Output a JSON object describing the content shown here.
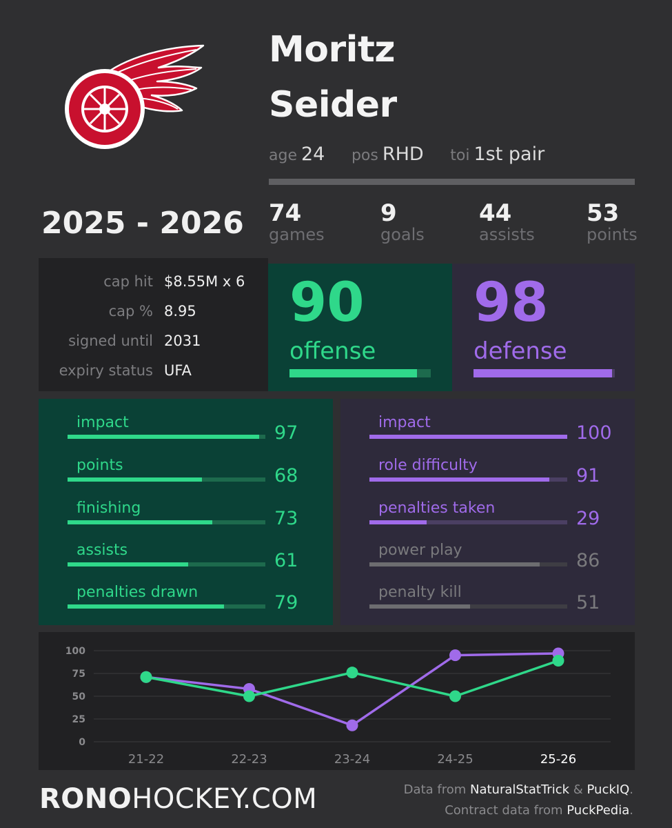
{
  "player": {
    "first_name": "Moritz",
    "last_name": "Seider",
    "age_label": "age",
    "age": "24",
    "pos_label": "pos",
    "pos": "RHD",
    "toi_label": "toi",
    "toi": "1st pair"
  },
  "season": "2025 - 2026",
  "stats": [
    {
      "value": "74",
      "label": "games"
    },
    {
      "value": "9",
      "label": "goals"
    },
    {
      "value": "44",
      "label": "assists"
    },
    {
      "value": "53",
      "label": "points"
    }
  ],
  "contract": [
    {
      "label": "cap hit",
      "value": "$8.55M x 6"
    },
    {
      "label": "cap %",
      "value": "8.95"
    },
    {
      "label": "signed until",
      "value": "2031"
    },
    {
      "label": "expiry status",
      "value": "UFA"
    }
  ],
  "offense": {
    "score": "90",
    "label": "offense",
    "level": 90,
    "metrics": [
      {
        "label": "impact",
        "value": "97",
        "level": 97
      },
      {
        "label": "points",
        "value": "68",
        "level": 68
      },
      {
        "label": "finishing",
        "value": "73",
        "level": 73
      },
      {
        "label": "assists",
        "value": "61",
        "level": 61
      },
      {
        "label": "penalties drawn",
        "value": "79",
        "level": 79
      }
    ]
  },
  "defense": {
    "score": "98",
    "label": "defense",
    "level": 98,
    "metrics": [
      {
        "label": "impact",
        "value": "100",
        "level": 100,
        "muted": false
      },
      {
        "label": "role difficulty",
        "value": "91",
        "level": 91,
        "muted": false
      },
      {
        "label": "penalties taken",
        "value": "29",
        "level": 29,
        "muted": false
      },
      {
        "label": "power play",
        "value": "86",
        "level": 86,
        "muted": true
      },
      {
        "label": "penalty kill",
        "value": "51",
        "level": 51,
        "muted": true
      }
    ]
  },
  "colors": {
    "offense": "#2fd88a",
    "offense_track": "#1d6a4d",
    "defense": "#a06bea",
    "defense_track": "#4b3f63",
    "muted": "#6d6d70",
    "muted_text": "#7a7a7d",
    "muted_track": "#3e3d44"
  },
  "chart_data": {
    "type": "line",
    "categories": [
      "21-22",
      "22-23",
      "23-24",
      "24-25",
      "25-26"
    ],
    "highlight_category": "25-26",
    "yticks": [
      0,
      25,
      50,
      75,
      100
    ],
    "ylim": [
      0,
      100
    ],
    "grid": true,
    "series": [
      {
        "name": "",
        "color": "#a06bea",
        "values": [
          71,
          58,
          18,
          95,
          97
        ]
      },
      {
        "name": "",
        "color": "#2fd88a",
        "values": [
          71,
          50,
          76,
          50,
          89
        ]
      }
    ]
  },
  "footer": {
    "brand_bold": "RONO",
    "brand_rest": "HOCKEY.COM",
    "credit1_pre": "Data from ",
    "credit1_a": "NaturalStatTrick",
    "credit1_mid": " & ",
    "credit1_b": "PuckIQ",
    "credit1_post": ".",
    "credit2_pre": "Contract data from ",
    "credit2_a": "PuckPedia",
    "credit2_post": "."
  },
  "logo": {
    "icon": "red-wings-winged-wheel-logo"
  }
}
